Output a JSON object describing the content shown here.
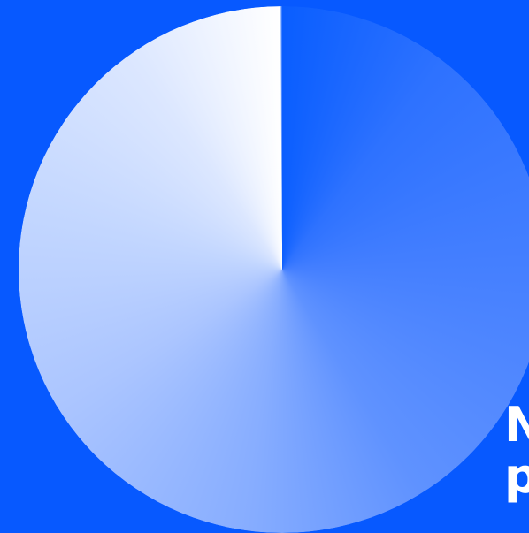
{
  "hero": {
    "background_color": "#0759FF",
    "graphic": {
      "icon": "radial-gradient-circle-icon",
      "colors": {
        "start": "#0A5EFF",
        "mid": "#5F92FF",
        "end": "#FFFFFF"
      }
    },
    "headline": {
      "line1": "N",
      "line2": "p"
    }
  }
}
